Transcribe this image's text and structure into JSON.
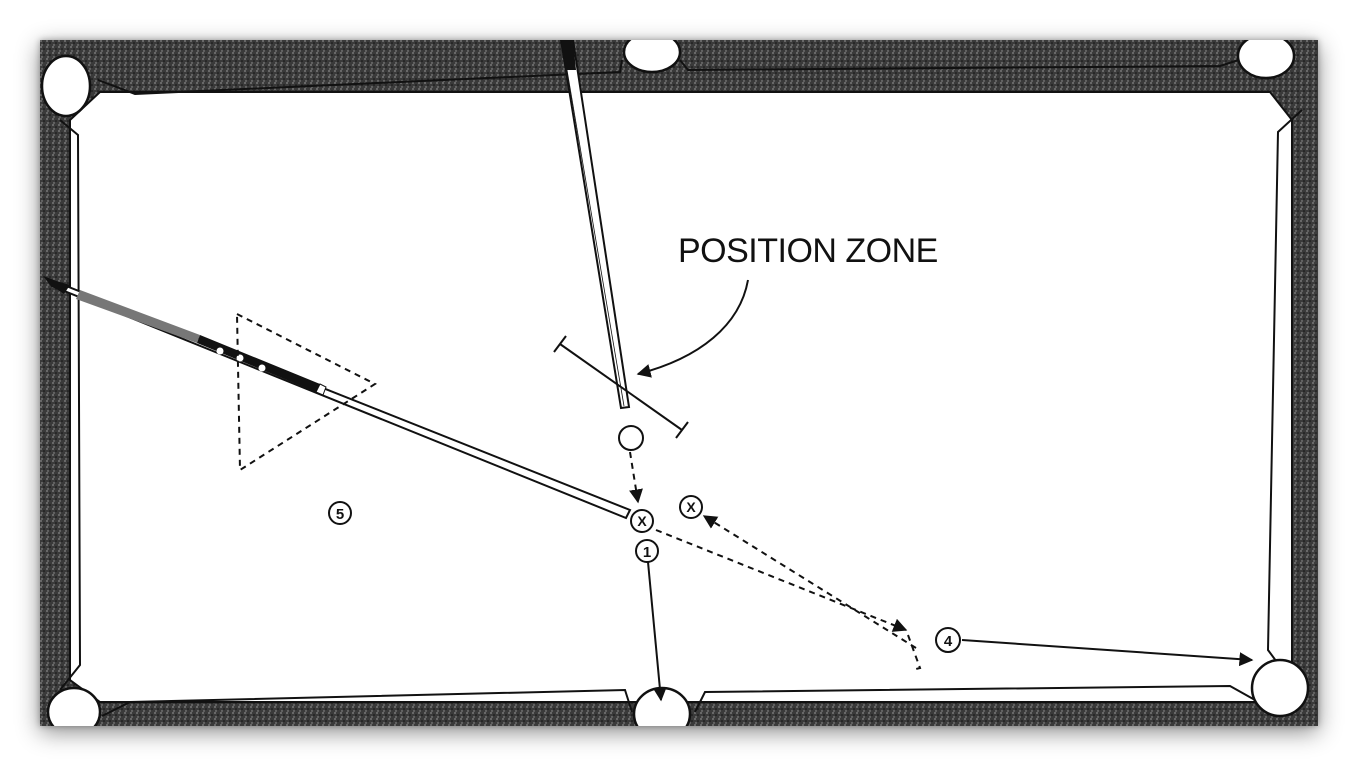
{
  "annotation": {
    "label": "POSITION ZONE"
  },
  "balls": [
    {
      "id": "cue",
      "label": ""
    },
    {
      "id": "ghost-x-1",
      "label": "X"
    },
    {
      "id": "ghost-x-2",
      "label": "X"
    },
    {
      "id": "ball-1",
      "label": "1"
    },
    {
      "id": "ball-4",
      "label": "4"
    },
    {
      "id": "ball-5",
      "label": "5"
    }
  ],
  "colors": {
    "ink": "#111111",
    "cloth": "#ffffff",
    "rail": "#2a2a2a"
  }
}
